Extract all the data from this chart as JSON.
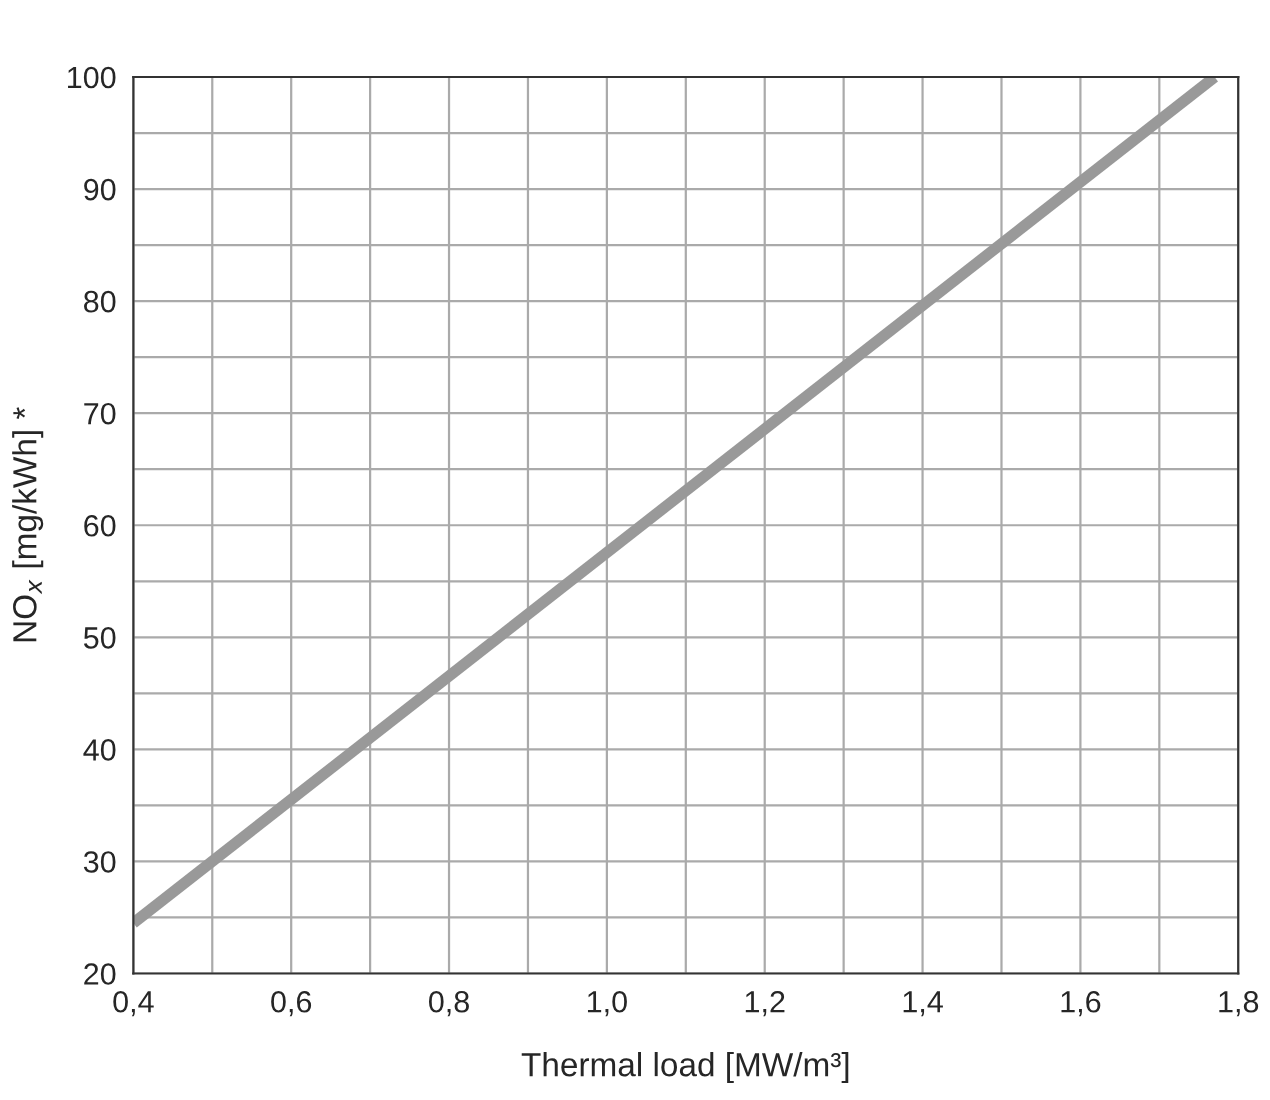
{
  "chart_data": {
    "type": "line",
    "xlabel": "Thermal load [MW/m³]",
    "ylabel": "NO$_{x}$ [mg/kWh] *",
    "x": [
      0.4,
      1.77
    ],
    "series": [
      {
        "color": "#999999",
        "values": [
          24.5,
          100
        ]
      }
    ],
    "xlim": [
      0.4,
      1.8
    ],
    "ylim": [
      20,
      100
    ],
    "xticks": [
      {
        "value": 0.4,
        "label": "0,4"
      },
      {
        "value": 0.5,
        "label": null
      },
      {
        "value": 0.6,
        "label": "0,6"
      },
      {
        "value": 0.7,
        "label": null
      },
      {
        "value": 0.8,
        "label": "0,8"
      },
      {
        "value": 0.9,
        "label": null
      },
      {
        "value": 1.0,
        "label": "1,0"
      },
      {
        "value": 1.1,
        "label": null
      },
      {
        "value": 1.2,
        "label": "1,2"
      },
      {
        "value": 1.3,
        "label": null
      },
      {
        "value": 1.4,
        "label": "1,4"
      },
      {
        "value": 1.5,
        "label": null
      },
      {
        "value": 1.6,
        "label": "1,6"
      },
      {
        "value": 1.7,
        "label": null
      },
      {
        "value": 1.8,
        "label": "1,8"
      }
    ],
    "yticks": [
      20,
      {
        "value": 25,
        "label": null
      },
      30,
      {
        "value": 35,
        "label": null
      },
      40,
      {
        "value": 45,
        "label": null
      },
      50,
      {
        "value": 55,
        "label": null
      },
      60,
      {
        "value": 65,
        "label": null
      },
      70,
      {
        "value": 75,
        "label": null
      },
      80,
      {
        "value": 85,
        "label": null
      },
      90,
      {
        "value": 95,
        "label": null
      },
      100
    ],
    "grid": true,
    "line_style": "solid"
  }
}
